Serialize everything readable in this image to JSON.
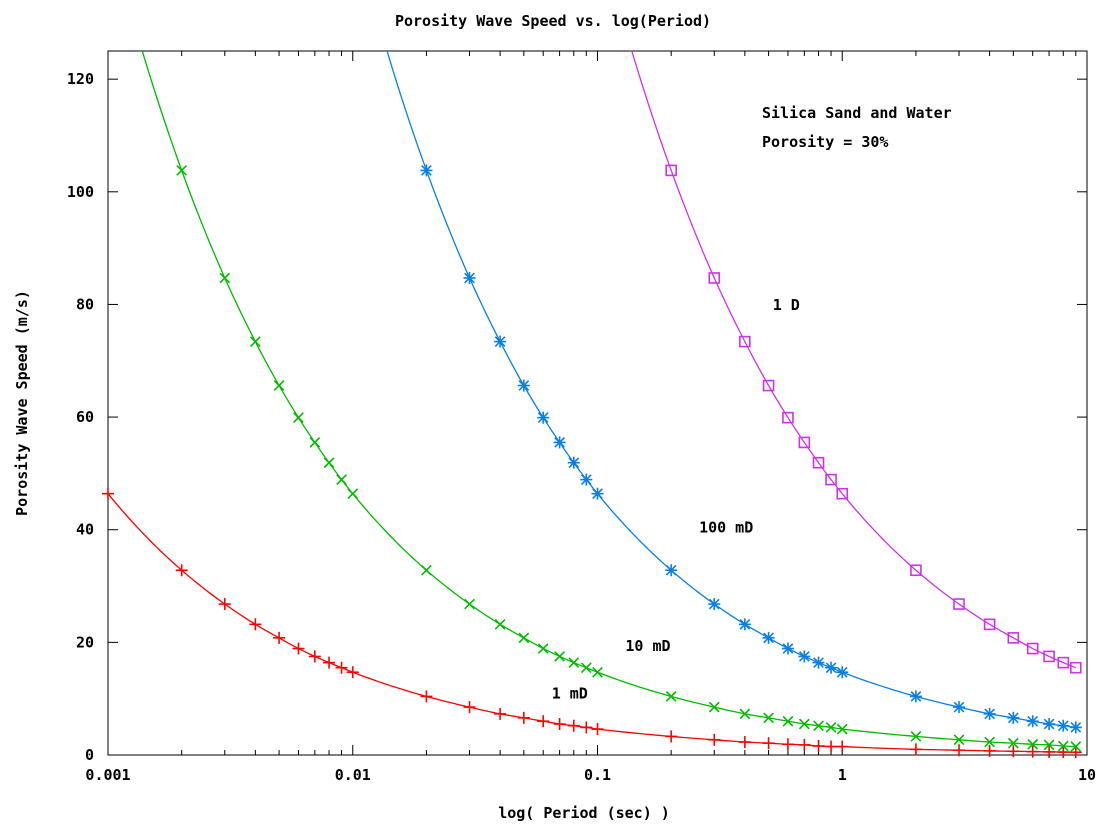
{
  "chart_data": {
    "type": "line",
    "title": "Porosity Wave Speed vs. log(Period)",
    "xlabel": "log( Period (sec) )",
    "ylabel": "Porosity Wave Speed (m/s)",
    "x_scale": "log",
    "xlim": [
      0.001,
      10
    ],
    "ylim": [
      0,
      125
    ],
    "x_ticks": [
      0.001,
      0.01,
      0.1,
      1,
      10
    ],
    "x_tick_labels": [
      "0.001",
      "0.01",
      "0.1",
      "1",
      "10"
    ],
    "y_ticks": [
      0,
      20,
      40,
      60,
      80,
      100,
      120
    ],
    "y_tick_labels": [
      "0",
      "20",
      "40",
      "60",
      "80",
      "100",
      "120"
    ],
    "grid": false,
    "annotations": [
      "Silica Sand and Water",
      "Porosity = 30%"
    ],
    "series": [
      {
        "name": "1 mD",
        "color": "#ff0000",
        "marker": "plus",
        "x": [
          0.001,
          0.002,
          0.003,
          0.004,
          0.005,
          0.006,
          0.007,
          0.008,
          0.009,
          0.01,
          0.02,
          0.03,
          0.04,
          0.05,
          0.06,
          0.07,
          0.08,
          0.09,
          0.1,
          0.2,
          0.3,
          0.4,
          0.5,
          0.6,
          0.7,
          0.8,
          0.9,
          1,
          2,
          3,
          4,
          5,
          6,
          7,
          8,
          9
        ],
        "values": [
          46.4,
          32.8,
          26.8,
          23.2,
          20.8,
          18.9,
          17.5,
          16.4,
          15.5,
          14.7,
          10.4,
          8.5,
          7.3,
          6.6,
          6.0,
          5.5,
          5.2,
          4.9,
          4.6,
          3.3,
          2.7,
          2.3,
          2.1,
          1.9,
          1.8,
          1.6,
          1.5,
          1.5,
          1.0,
          0.85,
          0.73,
          0.66,
          0.6,
          0.55,
          0.52,
          0.49
        ]
      },
      {
        "name": "10 mD",
        "color": "#00bb00",
        "marker": "cross",
        "x": [
          0.002,
          0.003,
          0.004,
          0.005,
          0.006,
          0.007,
          0.008,
          0.009,
          0.01,
          0.02,
          0.03,
          0.04,
          0.05,
          0.06,
          0.07,
          0.08,
          0.09,
          0.1,
          0.2,
          0.3,
          0.4,
          0.5,
          0.6,
          0.7,
          0.8,
          0.9,
          1,
          2,
          3,
          4,
          5,
          6,
          7,
          8,
          9
        ],
        "values": [
          103.8,
          84.7,
          73.4,
          65.6,
          59.9,
          55.5,
          51.9,
          48.9,
          46.4,
          32.8,
          26.8,
          23.2,
          20.8,
          18.9,
          17.5,
          16.4,
          15.5,
          14.7,
          10.4,
          8.5,
          7.3,
          6.6,
          6.0,
          5.5,
          5.2,
          4.9,
          4.6,
          3.3,
          2.7,
          2.3,
          2.1,
          1.9,
          1.8,
          1.6,
          1.5
        ]
      },
      {
        "name": "100 mD",
        "color": "#0a7fe8",
        "marker": "star",
        "x": [
          0.02,
          0.03,
          0.04,
          0.05,
          0.06,
          0.07,
          0.08,
          0.09,
          0.1,
          0.2,
          0.3,
          0.4,
          0.5,
          0.6,
          0.7,
          0.8,
          0.9,
          1,
          2,
          3,
          4,
          5,
          6,
          7,
          8,
          9
        ],
        "values": [
          103.8,
          84.7,
          73.4,
          65.6,
          59.9,
          55.5,
          51.9,
          48.9,
          46.4,
          32.8,
          26.8,
          23.2,
          20.8,
          18.9,
          17.5,
          16.4,
          15.5,
          14.7,
          10.4,
          8.5,
          7.3,
          6.6,
          6.0,
          5.5,
          5.2,
          4.9
        ]
      },
      {
        "name": "1 D",
        "color": "#cc33ee",
        "marker": "square",
        "x": [
          0.2,
          0.3,
          0.4,
          0.5,
          0.6,
          0.7,
          0.8,
          0.9,
          1,
          2,
          3,
          4,
          5,
          6,
          7,
          8,
          9
        ],
        "values": [
          103.8,
          84.7,
          73.4,
          65.6,
          59.9,
          55.5,
          51.9,
          48.9,
          46.4,
          32.8,
          26.8,
          23.2,
          20.8,
          18.9,
          17.5,
          16.4,
          15.5
        ]
      }
    ],
    "curve_labels": [
      {
        "text": "1 mD",
        "x": 0.065,
        "y": 10
      },
      {
        "text": "10 mD",
        "x": 0.13,
        "y": 18.5
      },
      {
        "text": "100 mD",
        "x": 0.26,
        "y": 39.5
      },
      {
        "text": "1 D",
        "x": 0.52,
        "y": 79
      }
    ]
  }
}
